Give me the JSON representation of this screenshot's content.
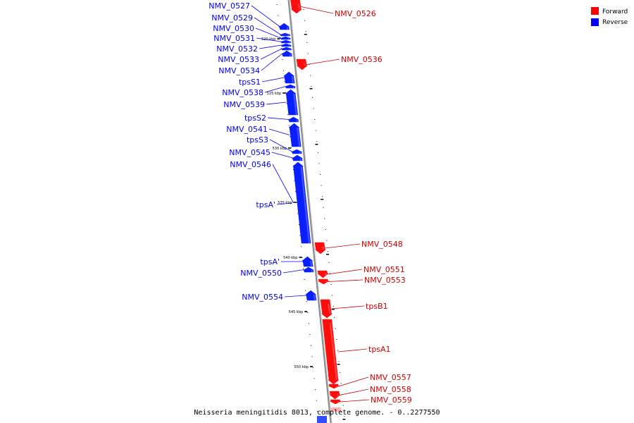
{
  "caption": "Neisseria meningitidis 8013, complete genome. - 0..2277550",
  "legend": [
    {
      "label": "Forward",
      "color": "#ff0000"
    },
    {
      "label": "Reverse",
      "color": "#0000ff"
    }
  ],
  "ticks": [
    {
      "label": "520 kbp"
    },
    {
      "label": "525 kbp"
    },
    {
      "label": "530 kbp"
    },
    {
      "label": "535 kbp"
    },
    {
      "label": "540 kbp"
    },
    {
      "label": "545 kbp"
    },
    {
      "label": "550 kbp"
    }
  ],
  "reverse_genes": [
    {
      "name": "NMV_0527"
    },
    {
      "name": "NMV_0529"
    },
    {
      "name": "NMV_0530"
    },
    {
      "name": "NMV_0531"
    },
    {
      "name": "NMV_0532"
    },
    {
      "name": "NMV_0533"
    },
    {
      "name": "NMV_0534"
    },
    {
      "name": "tpsS1"
    },
    {
      "name": "NMV_0538"
    },
    {
      "name": "NMV_0539"
    },
    {
      "name": "tpsS2"
    },
    {
      "name": "NMV_0541"
    },
    {
      "name": "tpsS3"
    },
    {
      "name": "NMV_0545"
    },
    {
      "name": "NMV_0546"
    },
    {
      "name": "tpsA'"
    },
    {
      "name": "tpsA'"
    },
    {
      "name": "NMV_0550"
    },
    {
      "name": "NMV_0554"
    }
  ],
  "forward_genes": [
    {
      "name": "NMV_0526"
    },
    {
      "name": "NMV_0536"
    },
    {
      "name": "NMV_0548"
    },
    {
      "name": "NMV_0551"
    },
    {
      "name": "NMV_0553"
    },
    {
      "name": "tpsB1"
    },
    {
      "name": "tpsA1"
    },
    {
      "name": "NMV_0557"
    },
    {
      "name": "NMV_0558"
    },
    {
      "name": "NMV_0559"
    }
  ]
}
